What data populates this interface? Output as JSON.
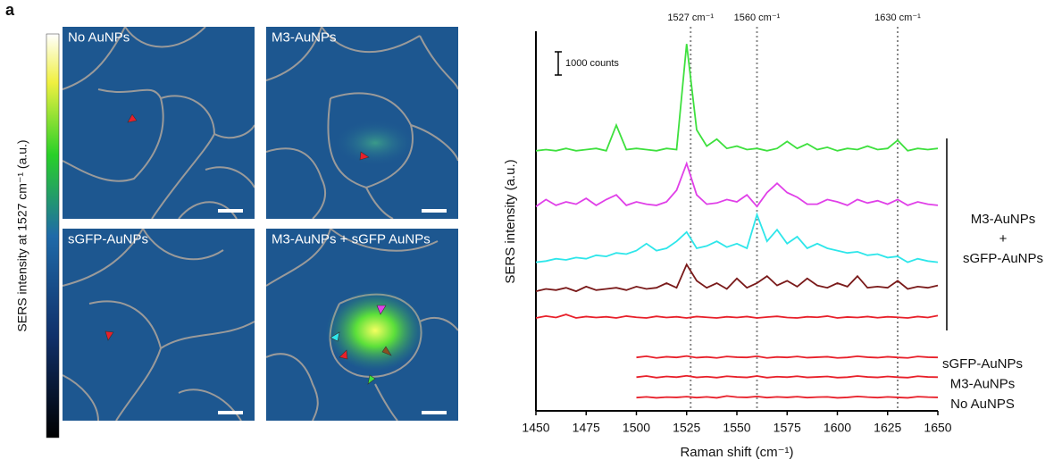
{
  "panel_label": "a",
  "images": {
    "colorbar_label": "SERS intensity at 1527 cm⁻¹ (a.u.)",
    "panels": [
      "No AuNPs",
      "M3-AuNPs",
      "sGFP-AuNPs",
      "M3-AuNPs + sGFP AuNPs"
    ]
  },
  "chart_data": {
    "type": "line",
    "xlabel": "Raman shift (cm⁻¹)",
    "ylabel": "SERS intensity (a.u.)",
    "xlim": [
      1450,
      1650
    ],
    "xticks": [
      1450,
      1475,
      1500,
      1525,
      1550,
      1575,
      1600,
      1625,
      1650
    ],
    "ylim": [
      0,
      16000
    ],
    "annotations": [
      {
        "x": 1527,
        "text": "1527 cm⁻¹"
      },
      {
        "x": 1560,
        "text": "1560 cm⁻¹"
      },
      {
        "x": 1630,
        "text": "1630 cm⁻¹"
      }
    ],
    "scale_bar": {
      "value": 1000,
      "text": "1000 counts"
    },
    "group_label": [
      "M3-AuNPs",
      "+",
      "sGFP-AuNPs"
    ],
    "x": [
      1450,
      1455,
      1460,
      1465,
      1470,
      1475,
      1480,
      1485,
      1490,
      1495,
      1500,
      1505,
      1510,
      1515,
      1520,
      1525,
      1530,
      1535,
      1540,
      1545,
      1550,
      1555,
      1560,
      1565,
      1570,
      1575,
      1580,
      1585,
      1590,
      1595,
      1600,
      1605,
      1610,
      1615,
      1620,
      1625,
      1630,
      1635,
      1640,
      1645,
      1650
    ],
    "series": [
      {
        "color": "#3ee03e",
        "values": [
          11200,
          11250,
          11200,
          11300,
          11200,
          11250,
          11300,
          11200,
          12300,
          11250,
          11300,
          11250,
          11200,
          11300,
          11250,
          15800,
          12100,
          11400,
          11700,
          11300,
          11400,
          11250,
          11300,
          11200,
          11300,
          11600,
          11300,
          11500,
          11250,
          11350,
          11200,
          11300,
          11250,
          11400,
          11250,
          11300,
          11650,
          11200,
          11300,
          11250,
          11300
        ]
      },
      {
        "color": "#e040e8",
        "values": [
          8800,
          9100,
          8850,
          9000,
          8900,
          9150,
          8850,
          9100,
          9300,
          8850,
          9000,
          8900,
          8850,
          9000,
          9500,
          10650,
          9300,
          8900,
          8950,
          9100,
          9000,
          9300,
          8800,
          9400,
          9800,
          9400,
          9200,
          8900,
          8900,
          9100,
          9000,
          8850,
          9100,
          8950,
          9050,
          8900,
          9100,
          8850,
          9000,
          8900,
          8850
        ]
      },
      {
        "color": "#2ee6ea",
        "values": [
          6400,
          6450,
          6550,
          6500,
          6600,
          6550,
          6700,
          6650,
          6800,
          6750,
          6900,
          7200,
          6900,
          7000,
          7300,
          7700,
          7000,
          7100,
          7300,
          7050,
          7200,
          7000,
          8450,
          7300,
          7800,
          7200,
          7500,
          7000,
          7200,
          7000,
          6900,
          6800,
          6850,
          6700,
          6750,
          6600,
          6650,
          6400,
          6550,
          6450,
          6400
        ]
      },
      {
        "color": "#7a1a1a",
        "values": [
          5150,
          5250,
          5200,
          5300,
          5150,
          5350,
          5200,
          5250,
          5300,
          5200,
          5350,
          5250,
          5300,
          5500,
          5300,
          6300,
          5600,
          5300,
          5500,
          5250,
          5700,
          5300,
          5500,
          5800,
          5400,
          5600,
          5350,
          5700,
          5400,
          5300,
          5500,
          5350,
          5800,
          5300,
          5350,
          5300,
          5600,
          5250,
          5350,
          5300,
          5400
        ]
      },
      {
        "color": "#e8202a",
        "values": [
          4000,
          4080,
          4020,
          4150,
          4000,
          4060,
          4020,
          4050,
          4000,
          4080,
          4030,
          4000,
          4070,
          4020,
          4050,
          4000,
          4060,
          4030,
          4000,
          4050,
          4020,
          4060,
          4000,
          4040,
          4070,
          4020,
          4000,
          4050,
          4030,
          4080,
          4000,
          4040,
          4020,
          4060,
          4010,
          4050,
          4030,
          4000,
          4060,
          4020,
          4100
        ]
      },
      {
        "name": "sGFP-AuNPs",
        "color": "#e8202a",
        "values": [
          null,
          null,
          null,
          null,
          null,
          null,
          null,
          null,
          null,
          null,
          2300,
          2350,
          2280,
          2330,
          2300,
          2360,
          2290,
          2320,
          2280,
          2340,
          2310,
          2300,
          2350,
          2280,
          2320,
          2300,
          2340,
          2290,
          2310,
          2330,
          2280,
          2300,
          2350,
          2310,
          2290,
          2330,
          2300,
          2280,
          2340,
          2310,
          2300
        ]
      },
      {
        "name": "M3-AuNPs",
        "color": "#e8202a",
        "values": [
          null,
          null,
          null,
          null,
          null,
          null,
          null,
          null,
          null,
          null,
          1450,
          1500,
          1430,
          1480,
          1450,
          1510,
          1440,
          1470,
          1430,
          1490,
          1460,
          1440,
          1500,
          1430,
          1470,
          1450,
          1490,
          1440,
          1460,
          1480,
          1430,
          1450,
          1500,
          1460,
          1440,
          1480,
          1450,
          1430,
          1490,
          1460,
          1450
        ]
      },
      {
        "name": "No AuNPS",
        "color": "#e8202a",
        "values": [
          null,
          null,
          null,
          null,
          null,
          null,
          null,
          null,
          null,
          null,
          570,
          600,
          560,
          590,
          580,
          610,
          570,
          600,
          560,
          640,
          590,
          580,
          620,
          570,
          600,
          580,
          610,
          570,
          590,
          600,
          560,
          580,
          620,
          590,
          570,
          600,
          580,
          560,
          610,
          590,
          580
        ]
      }
    ]
  }
}
